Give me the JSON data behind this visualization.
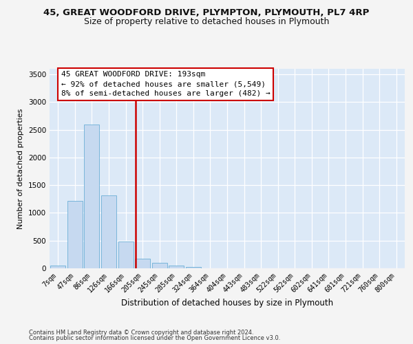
{
  "title1": "45, GREAT WOODFORD DRIVE, PLYMPTON, PLYMOUTH, PL7 4RP",
  "title2": "Size of property relative to detached houses in Plymouth",
  "xlabel": "Distribution of detached houses by size in Plymouth",
  "ylabel": "Number of detached properties",
  "footer1": "Contains HM Land Registry data © Crown copyright and database right 2024.",
  "footer2": "Contains public sector information licensed under the Open Government Licence v3.0.",
  "annotation_line1": "45 GREAT WOODFORD DRIVE: 193sqm",
  "annotation_line2": "← 92% of detached houses are smaller (5,549)",
  "annotation_line3": "8% of semi-detached houses are larger (482) →",
  "bar_labels": [
    "7sqm",
    "47sqm",
    "86sqm",
    "126sqm",
    "166sqm",
    "205sqm",
    "245sqm",
    "285sqm",
    "324sqm",
    "364sqm",
    "404sqm",
    "443sqm",
    "483sqm",
    "522sqm",
    "562sqm",
    "602sqm",
    "641sqm",
    "681sqm",
    "721sqm",
    "760sqm",
    "800sqm"
  ],
  "bar_values": [
    50,
    1220,
    2590,
    1310,
    490,
    170,
    105,
    55,
    30,
    5,
    2,
    0,
    0,
    0,
    0,
    0,
    0,
    0,
    0,
    0,
    0
  ],
  "bar_color": "#c6d9f0",
  "bar_edge_color": "#6baed6",
  "vline_x": 4.57,
  "vline_color": "#cc0000",
  "ylim_max": 3600,
  "yticks": [
    0,
    500,
    1000,
    1500,
    2000,
    2500,
    3000,
    3500
  ],
  "plot_bg_color": "#dce9f7",
  "grid_color": "#ffffff",
  "fig_bg_color": "#f4f4f4",
  "title1_fontsize": 9.5,
  "title2_fontsize": 9,
  "xlabel_fontsize": 8.5,
  "ylabel_fontsize": 8,
  "tick_fontsize": 7,
  "footer_fontsize": 6,
  "annot_fontsize": 8
}
